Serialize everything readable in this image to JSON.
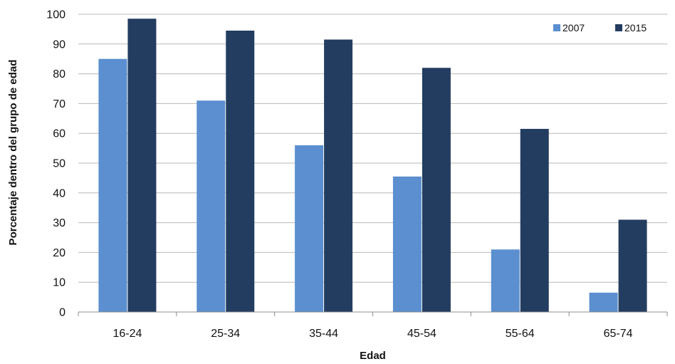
{
  "chart_data": {
    "type": "bar",
    "title": "",
    "xlabel": "Edad",
    "ylabel": "Porcentaje dentro del grupo de edad",
    "categories": [
      "16-24",
      "25-34",
      "35-44",
      "45-54",
      "55-64",
      "65-74"
    ],
    "series": [
      {
        "name": "2007",
        "color": "#5b8fcf",
        "values": [
          85,
          71,
          56,
          45.5,
          21,
          6.5
        ]
      },
      {
        "name": "2015",
        "color": "#233d60",
        "values": [
          98.5,
          94.5,
          91.5,
          82,
          61.5,
          31
        ]
      }
    ],
    "ylim": [
      0,
      100
    ],
    "yticks": [
      "0",
      "10",
      "20",
      "30",
      "40",
      "50",
      "60",
      "70",
      "80",
      "90",
      "100"
    ],
    "grid": true,
    "legend_position": "top-right"
  }
}
